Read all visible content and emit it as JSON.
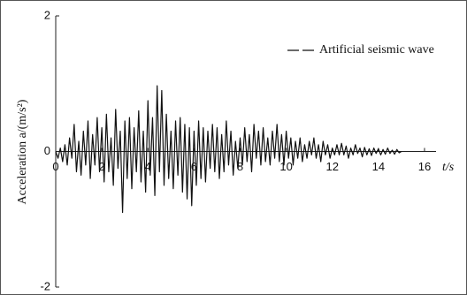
{
  "chart_data": {
    "type": "line",
    "xlabel": "t/s",
    "ylabel": "Acceleration a/(m/s²)",
    "xlim": [
      0,
      16.5
    ],
    "xticks": [
      0,
      2,
      4,
      6,
      8,
      10,
      12,
      14,
      16
    ],
    "ylim": [
      -2,
      2
    ],
    "yticks": [
      -2,
      0,
      2
    ],
    "legend": "top-right",
    "x": [
      0,
      0.1,
      0.2,
      0.3,
      0.4,
      0.5,
      0.6,
      0.7,
      0.8,
      0.9,
      1,
      1.1,
      1.2,
      1.3,
      1.4,
      1.5,
      1.6,
      1.7,
      1.8,
      1.9,
      2,
      2.1,
      2.2,
      2.3,
      2.4,
      2.5,
      2.6,
      2.7,
      2.8,
      2.9,
      3,
      3.1,
      3.2,
      3.3,
      3.4,
      3.5,
      3.6,
      3.7,
      3.8,
      3.9,
      4,
      4.1,
      4.2,
      4.3,
      4.4,
      4.5,
      4.6,
      4.7,
      4.8,
      4.9,
      5,
      5.1,
      5.2,
      5.3,
      5.4,
      5.5,
      5.6,
      5.7,
      5.8,
      5.9,
      6,
      6.1,
      6.2,
      6.3,
      6.4,
      6.5,
      6.6,
      6.7,
      6.8,
      6.9,
      7,
      7.1,
      7.2,
      7.3,
      7.4,
      7.5,
      7.6,
      7.7,
      7.8,
      7.9,
      8,
      8.1,
      8.2,
      8.3,
      8.4,
      8.5,
      8.6,
      8.7,
      8.8,
      8.9,
      9,
      9.1,
      9.2,
      9.3,
      9.4,
      9.5,
      9.6,
      9.7,
      9.8,
      9.9,
      10,
      10.1,
      10.2,
      10.3,
      10.4,
      10.5,
      10.6,
      10.7,
      10.8,
      10.9,
      11,
      11.1,
      11.2,
      11.3,
      11.4,
      11.5,
      11.6,
      11.7,
      11.8,
      11.9,
      12,
      12.1,
      12.2,
      12.3,
      12.4,
      12.5,
      12.6,
      12.7,
      12.8,
      12.9,
      13,
      13.1,
      13.2,
      13.3,
      13.4,
      13.5,
      13.6,
      13.7,
      13.8,
      13.9,
      14,
      14.1,
      14.2,
      14.3,
      14.4,
      14.5,
      14.6,
      14.7,
      14.8,
      14.9,
      15
    ],
    "series": [
      {
        "name": "Artificial seismic wave",
        "color": "#111111",
        "values": [
          0,
          -0.1,
          0.05,
          -0.15,
          0.1,
          -0.2,
          0.2,
          -0.1,
          0.4,
          -0.3,
          0.15,
          -0.35,
          0.3,
          -0.2,
          0.45,
          -0.4,
          0.25,
          -0.2,
          0.5,
          -0.3,
          0.35,
          -0.45,
          0.55,
          -0.3,
          0.2,
          -0.5,
          0.62,
          -0.25,
          0.3,
          -0.9,
          0.45,
          -0.4,
          0.5,
          -0.55,
          0.35,
          -0.3,
          0.6,
          -0.45,
          0.3,
          -0.6,
          0.75,
          -0.35,
          0.5,
          -0.65,
          0.97,
          -0.3,
          0.9,
          -0.5,
          0.55,
          -0.4,
          0.3,
          -0.55,
          0.45,
          -0.35,
          0.5,
          -0.6,
          0.4,
          -0.7,
          0.35,
          -0.8,
          0.3,
          -0.5,
          0.45,
          -0.4,
          0.35,
          -0.45,
          0.3,
          -0.25,
          0.4,
          -0.3,
          0.35,
          -0.4,
          0.25,
          -0.3,
          0.45,
          -0.2,
          0.3,
          -0.35,
          0.15,
          -0.25,
          0.2,
          -0.2,
          0.35,
          -0.15,
          0.25,
          -0.3,
          0.4,
          -0.1,
          0.3,
          -0.2,
          0.35,
          -0.15,
          0.2,
          -0.2,
          0.3,
          -0.1,
          0.4,
          -0.15,
          0.25,
          -0.2,
          0.3,
          -0.1,
          0.2,
          -0.2,
          0.15,
          -0.1,
          0.2,
          -0.15,
          0.1,
          -0.1,
          0.15,
          -0.05,
          0.2,
          -0.1,
          0.1,
          -0.15,
          0.15,
          -0.05,
          0.1,
          -0.1,
          0.05,
          -0.05,
          0.1,
          -0.05,
          0.12,
          -0.05,
          0.08,
          -0.1,
          0.05,
          -0.05,
          0.1,
          -0.03,
          0.05,
          -0.08,
          0.06,
          -0.05,
          0.04,
          -0.06,
          0.05,
          -0.03,
          0.04,
          -0.05,
          0.03,
          -0.04,
          0.05,
          -0.03,
          0.02,
          -0.04,
          0.03,
          -0.02,
          0
        ]
      }
    ]
  }
}
